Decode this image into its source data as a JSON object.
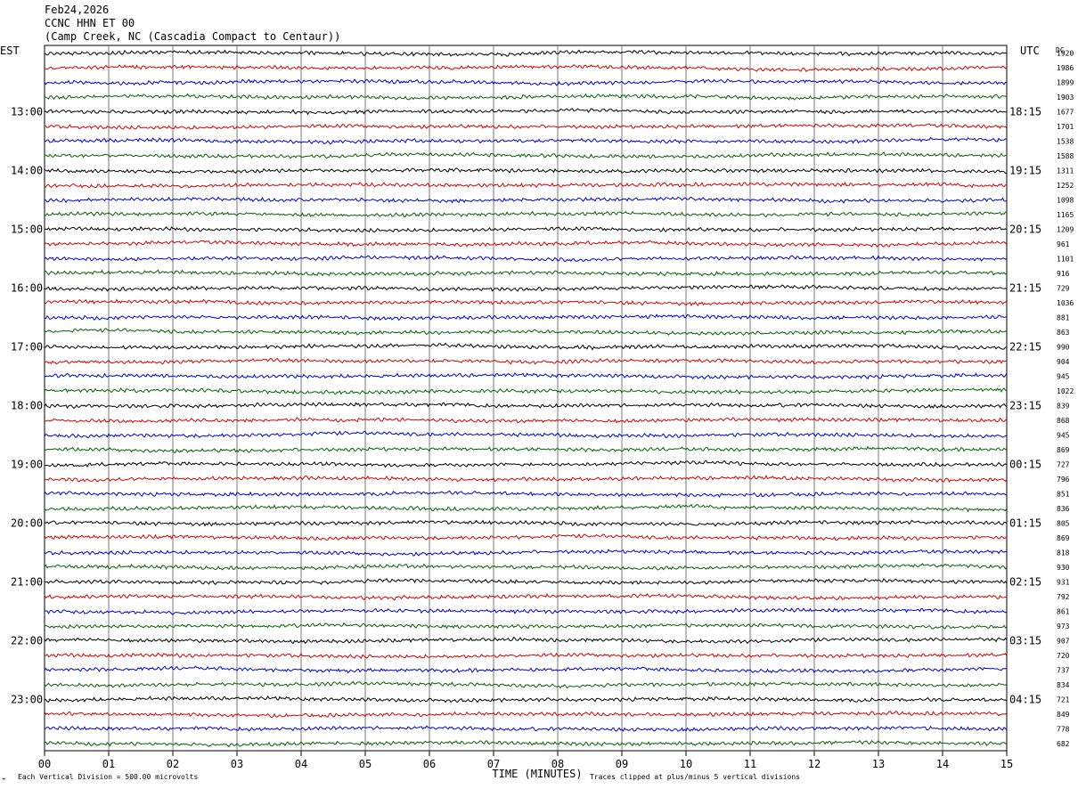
{
  "header": {
    "date": "Feb24,2026",
    "station": "CCNC HHN ET 00",
    "location": "(Camp Creek, NC (Cascadia Compact to Centaur))"
  },
  "left_tz": "EST",
  "right_tz": "UTC",
  "dc_label": "DC",
  "footer": {
    "corner_mark": "⌁",
    "scale_note": "Each Vertical Division =  500.00 microvolts",
    "clip_note": "Traces clipped at plus/minus 5 vertical divisions"
  },
  "colors": [
    "#000000",
    "#d40000",
    "#0000cc",
    "#006400"
  ],
  "chart_data": {
    "type": "line",
    "xlabel": "TIME (MINUTES)",
    "x_ticks": [
      "00",
      "01",
      "02",
      "03",
      "04",
      "05",
      "06",
      "07",
      "08",
      "09",
      "10",
      "11",
      "12",
      "13",
      "14",
      "15"
    ],
    "xlim": [
      0,
      15
    ],
    "traces_per_hour": 4,
    "left_hour_labels": [
      "13:00",
      "14:00",
      "15:00",
      "16:00",
      "17:00",
      "18:00",
      "19:00",
      "20:00",
      "21:00",
      "22:00",
      "23:00"
    ],
    "right_hour_labels": [
      "18:15",
      "19:15",
      "20:15",
      "21:15",
      "22:15",
      "23:15",
      "00:15",
      "01:15",
      "02:15",
      "03:15",
      "04:15"
    ],
    "dc_offsets": [
      1920,
      1986,
      1899,
      1903,
      1677,
      1701,
      1538,
      1588,
      1311,
      1252,
      1098,
      1165,
      1209,
      961,
      1101,
      916,
      729,
      1036,
      881,
      863,
      990,
      904,
      945,
      1022,
      839,
      868,
      945,
      869,
      727,
      796,
      851,
      836,
      805,
      869,
      818,
      930,
      931,
      792,
      861,
      973,
      907,
      720,
      737,
      834,
      721,
      849,
      778,
      682
    ]
  }
}
